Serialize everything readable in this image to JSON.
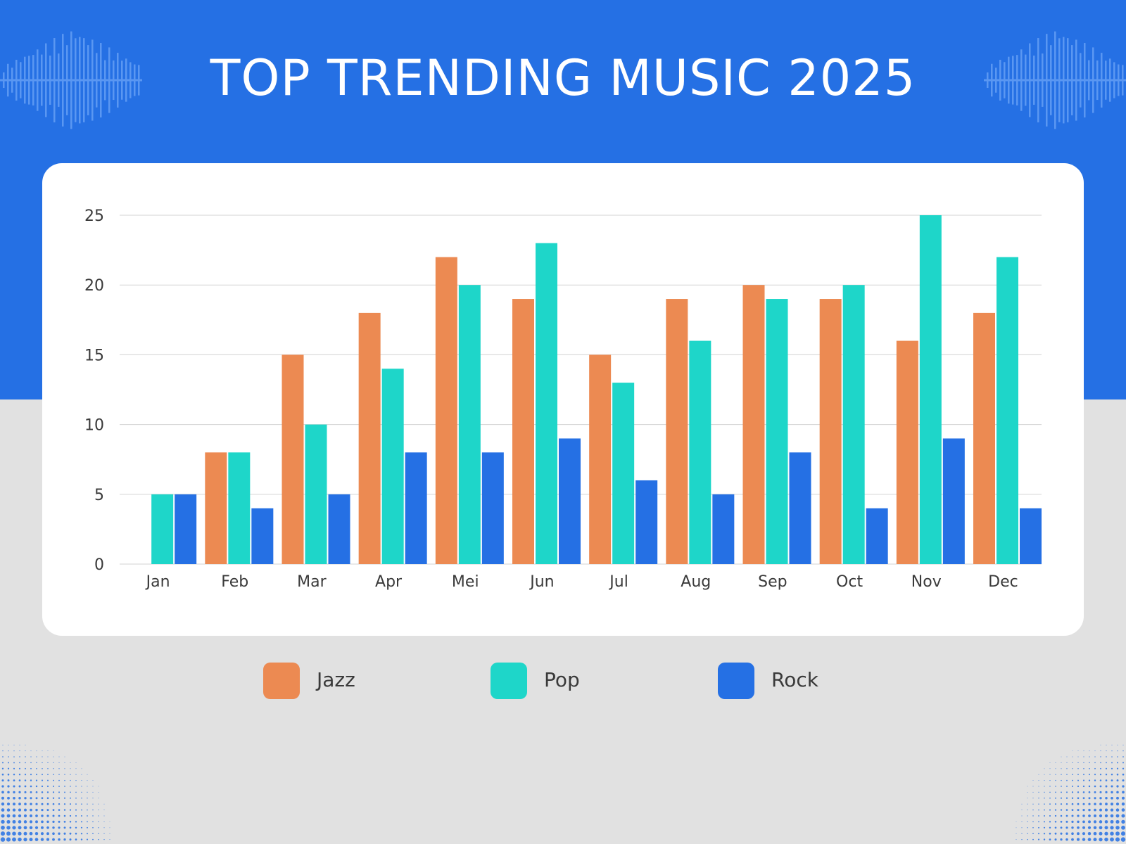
{
  "title": "TOP TRENDING MUSIC 2025",
  "colors": {
    "background_top": "#2570e4",
    "background_bottom": "#e1e1e1",
    "card": "#ffffff",
    "jazz": "#ec8a52",
    "pop": "#1ed6c9",
    "rock": "#2570e4",
    "grid": "#d3d3d3",
    "text": "#3a3a3a",
    "wave": "#5a97f2"
  },
  "chart_data": {
    "type": "bar",
    "title": "TOP TRENDING MUSIC 2025",
    "xlabel": "",
    "ylabel": "",
    "ylim": [
      0,
      25
    ],
    "yticks": [
      0,
      5,
      10,
      15,
      20,
      25
    ],
    "grid": true,
    "legend_position": "bottom",
    "categories": [
      "Jan",
      "Feb",
      "Mar",
      "Apr",
      "Mei",
      "Jun",
      "Jul",
      "Aug",
      "Sep",
      "Oct",
      "Nov",
      "Dec"
    ],
    "series": [
      {
        "name": "Jazz",
        "color": "#ec8a52",
        "values": [
          0,
          8,
          15,
          18,
          22,
          19,
          15,
          19,
          20,
          19,
          16,
          18
        ]
      },
      {
        "name": "Pop",
        "color": "#1ed6c9",
        "values": [
          5,
          8,
          10,
          14,
          20,
          23,
          13,
          16,
          19,
          20,
          25,
          22
        ]
      },
      {
        "name": "Rock",
        "color": "#2570e4",
        "values": [
          5,
          4,
          5,
          8,
          8,
          9,
          6,
          5,
          8,
          4,
          9,
          4
        ]
      }
    ]
  },
  "legend": [
    {
      "label": "Jazz",
      "color": "#ec8a52",
      "icon": "legend-swatch-square"
    },
    {
      "label": "Pop",
      "color": "#1ed6c9",
      "icon": "legend-swatch-square"
    },
    {
      "label": "Rock",
      "color": "#2570e4",
      "icon": "legend-swatch-square"
    }
  ],
  "decorations": {
    "top_left": "sound-wave-icon",
    "top_right": "sound-wave-icon",
    "bottom_left": "halftone-dots-pattern",
    "bottom_right": "halftone-dots-pattern"
  }
}
